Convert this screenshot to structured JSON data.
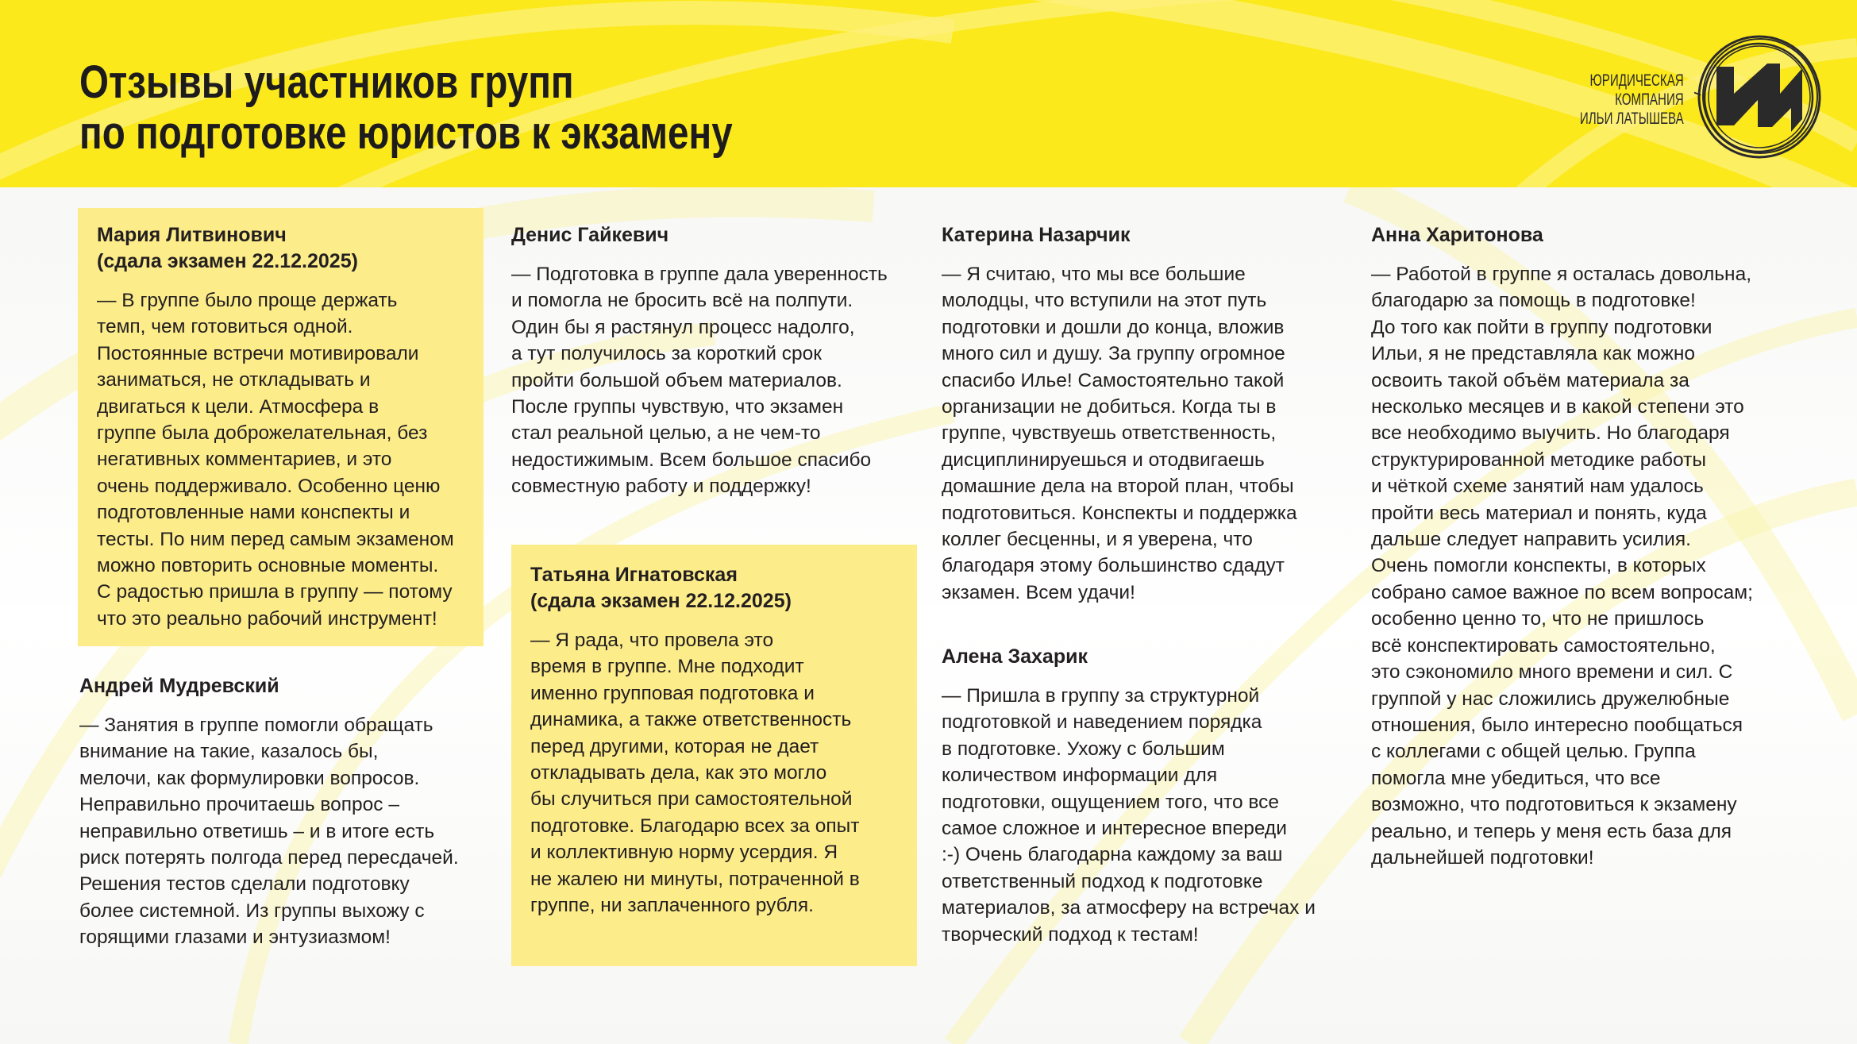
{
  "header": {
    "title_lines": [
      "Отзывы участников групп",
      "по подготовке юристов к экзамену"
    ],
    "logo_text_lines": [
      "ЮРИДИЧЕСКАЯ",
      "КОМПАНИЯ",
      "ИЛЬИ ЛАТЫШЕВА"
    ],
    "logo_icon": "circle-monogram-logo"
  },
  "colors": {
    "header_yellow": "#fbe91c",
    "highlight_box": "#fcec8a",
    "text": "#231f20"
  },
  "reviews": [
    {
      "name": "Мария Литвинович",
      "note": "(сдала экзамен 22.12.2025)",
      "highlighted": true,
      "lines": [
        "— В группе было проще держать",
        "темп, чем готовиться одной.",
        "Постоянные встречи мотивировали",
        "заниматься, не откладывать и",
        "двигаться к цели. Атмосфера в",
        "группе была доброжелательная, без",
        "негативных комментариев, и это",
        "очень поддерживало. Особенно ценю",
        "подготовленные нами конспекты и",
        "тесты. По ним перед самым экзаменом",
        "можно повторить основные моменты.",
        "С радостью пришла в группу — потому",
        "что это реально рабочий инструмент!"
      ]
    },
    {
      "name": "Андрей Мудревский",
      "note": "",
      "highlighted": false,
      "lines": [
        "— Занятия в группе помогли обращать",
        "внимание на такие, казалось бы,",
        "мелочи, как формулировки вопросов.",
        "Неправильно прочитаешь вопрос –",
        "неправильно ответишь – и в итоге есть",
        "риск потерять полгода перед пересдачей.",
        "Решения тестов сделали подготовку",
        "более системной. Из группы выхожу с",
        "горящими глазами и энтузиазмом!"
      ]
    },
    {
      "name": "Денис Гайкевич",
      "note": "",
      "highlighted": false,
      "lines": [
        "— Подготовка в группе дала уверенность",
        "и помогла не бросить всё на полпути.",
        "Один бы я растянул процесс надолго,",
        "а тут получилось за короткий срок",
        "пройти большой объем материалов.",
        "После группы чувствую, что экзамен",
        "стал реальной целью, а не чем-то",
        "недостижимым. Всем большое спасибо",
        "совместную работу и поддержку!"
      ]
    },
    {
      "name": "Татьяна Игнатовская",
      "note": "(сдала экзамен 22.12.2025)",
      "highlighted": true,
      "lines": [
        "— Я рада, что провела это",
        "время в группе. Мне подходит",
        "именно групповая подготовка и",
        "динамика, а также ответственность",
        "перед другими, которая не дает",
        "откладывать дела, как это могло",
        "бы случиться при самостоятельной",
        "подготовке. Благодарю всех за опыт",
        "и коллективную норму усердия. Я",
        "не жалею ни минуты, потраченной в",
        "группе, ни заплаченного рубля."
      ]
    },
    {
      "name": "Катерина Назарчик",
      "note": "",
      "highlighted": false,
      "lines": [
        "— Я считаю, что мы все большие",
        "молодцы, что вступили на этот путь",
        "подготовки и дошли до конца, вложив",
        "много сил и душу. За группу огромное",
        "спасибо Илье! Самостоятельно такой",
        "организации не добиться. Когда ты в",
        "группе, чувствуешь ответственность,",
        "дисциплинируешься и отодвигаешь",
        "домашние дела на второй план, чтобы",
        "подготовиться. Конспекты и поддержка",
        "коллег бесценны, и я уверена, что",
        "благодаря этому большинство сдадут",
        "экзамен. Всем удачи!"
      ]
    },
    {
      "name": "Алена Захарик",
      "note": "",
      "highlighted": false,
      "lines": [
        "— Пришла в группу за структурной",
        "подготовкой и наведением порядка",
        "в подготовке. Ухожу с большим",
        "количеством информации для",
        "подготовки, ощущением того, что все",
        "самое сложное и интересное впереди",
        ":-) Очень благодарна каждому за ваш",
        "ответственный подход к подготовке",
        "материалов, за атмосферу на встречах и",
        "творческий подход к тестам!"
      ]
    },
    {
      "name": "Анна Харитонова",
      "note": "",
      "highlighted": false,
      "lines": [
        "— Работой в группе я осталась довольна,",
        "благодарю за помощь в подготовке!",
        "До того как пойти в группу подготовки",
        "Ильи, я не представляла как можно",
        "освоить такой объём материала за",
        "несколько месяцев и в какой степени это",
        "все необходимо выучить. Но благодаря",
        "структурированной методике работы",
        "и чёткой схеме занятий нам удалось",
        "пройти весь материал и понять, куда",
        "дальше следует направить усилия.",
        "Очень помогли конспекты, в которых",
        "собрано самое важное по всем вопросам;",
        "особенно ценно то, что не пришлось",
        "всё конспектировать самостоятельно,",
        "это сэкономило много времени и сил. С",
        "группой у нас сложились дружелюбные",
        "отношения, было интересно пообщаться",
        "с коллегами с общей целью. Группа",
        "помогла мне убедиться, что все",
        "возможно, что подготовиться к экзамену",
        "реально, и теперь у меня есть база для",
        "дальнейшей подготовки!"
      ]
    }
  ]
}
